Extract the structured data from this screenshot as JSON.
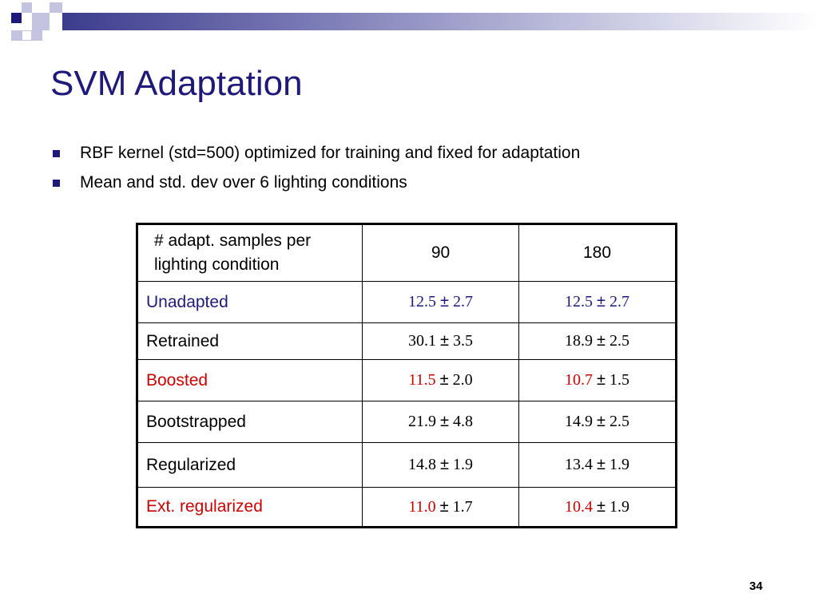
{
  "slide": {
    "title": "SVM Adaptation",
    "page_number": "34",
    "colors": {
      "title": "#1f1a7a",
      "unadapted": "#1f1a7a",
      "highlight": "#cc0000",
      "default": "#000000"
    }
  },
  "bullets": [
    "RBF kernel (std=500) optimized for training and fixed for adaptation",
    "Mean and std. dev over 6 lighting conditions"
  ],
  "table": {
    "header": {
      "label": "# adapt. samples per lighting condition",
      "columns": [
        "90",
        "180"
      ]
    },
    "rows": [
      {
        "name": "Unadapted",
        "color": "#1f1a7a",
        "cells": [
          {
            "mean": "12.5",
            "pm": "±",
            "std": "2.7",
            "mean_color": "#1f1a7a",
            "std_color": "#1f1a7a"
          },
          {
            "mean": "12.5",
            "pm": "±",
            "std": "2.7",
            "mean_color": "#1f1a7a",
            "std_color": "#1f1a7a"
          }
        ]
      },
      {
        "name": "Retrained",
        "color": "#000000",
        "cells": [
          {
            "mean": "30.1",
            "pm": "±",
            "std": "3.5",
            "mean_color": "#000000",
            "std_color": "#000000"
          },
          {
            "mean": "18.9",
            "pm": "±",
            "std": "2.5",
            "mean_color": "#000000",
            "std_color": "#000000"
          }
        ]
      },
      {
        "name": "Boosted",
        "color": "#cc0000",
        "cells": [
          {
            "mean": "11.5",
            "pm": "±",
            "std": "2.0",
            "mean_color": "#cc0000",
            "std_color": "#000000"
          },
          {
            "mean": "10.7",
            "pm": "±",
            "std": "1.5",
            "mean_color": "#cc0000",
            "std_color": "#000000"
          }
        ]
      },
      {
        "name": "Bootstrapped",
        "color": "#000000",
        "cells": [
          {
            "mean": "21.9",
            "pm": "±",
            "std": "4.8",
            "mean_color": "#000000",
            "std_color": "#000000"
          },
          {
            "mean": "14.9",
            "pm": "±",
            "std": "2.5",
            "mean_color": "#000000",
            "std_color": "#000000"
          }
        ]
      },
      {
        "name": "Regularized",
        "color": "#000000",
        "cells": [
          {
            "mean": "14.8",
            "pm": "±",
            "std": "1.9",
            "mean_color": "#000000",
            "std_color": "#000000"
          },
          {
            "mean": "13.4",
            "pm": "±",
            "std": "1.9",
            "mean_color": "#000000",
            "std_color": "#000000"
          }
        ]
      },
      {
        "name": "Ext. regularized",
        "color": "#cc0000",
        "cells": [
          {
            "mean": "11.0",
            "pm": "±",
            "std": "1.7",
            "mean_color": "#cc0000",
            "std_color": "#000000"
          },
          {
            "mean": "10.4",
            "pm": "±",
            "std": "1.9",
            "mean_color": "#cc0000",
            "std_color": "#000000"
          }
        ]
      }
    ]
  }
}
